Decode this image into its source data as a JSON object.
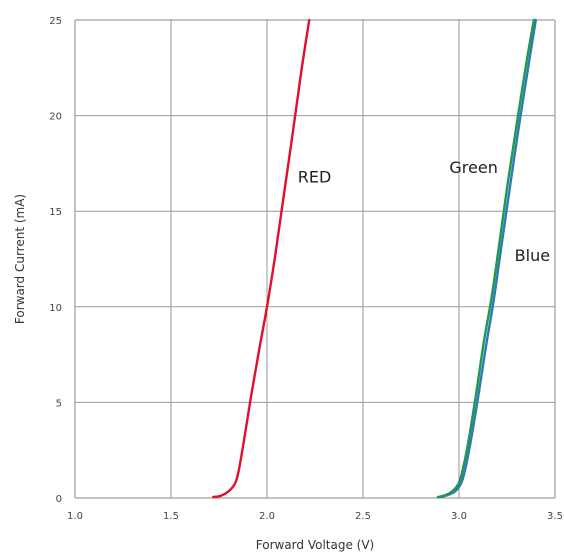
{
  "chart_data": {
    "type": "line",
    "title": "",
    "xlabel": "Forward Voltage (V)",
    "ylabel": "Forward Current (mA)",
    "xlim": [
      1.0,
      3.5
    ],
    "ylim": [
      0,
      25
    ],
    "grid": true,
    "legend": "none",
    "x_ticks": [
      "1.0",
      "1.5",
      "2.0",
      "2.5",
      "3.0",
      "3.5"
    ],
    "y_ticks": [
      "0",
      "5",
      "10",
      "15",
      "20",
      "25"
    ],
    "colors": {
      "RED": "#e0102a",
      "Green": "#1e9a48",
      "Blue": "#2f78c0",
      "grid": "#999999",
      "axis_frame": "#888888"
    },
    "series": [
      {
        "name": "RED",
        "x": [
          1.72,
          1.76,
          1.8,
          1.83,
          1.85,
          1.88,
          1.92,
          1.96,
          2.0,
          2.04,
          2.08,
          2.13,
          2.18,
          2.22
        ],
        "y": [
          0.05,
          0.12,
          0.35,
          0.7,
          1.3,
          3.0,
          5.5,
          7.8,
          10.0,
          12.5,
          15.3,
          18.8,
          22.4,
          25.0
        ]
      },
      {
        "name": "Green",
        "x": [
          2.89,
          2.93,
          2.97,
          3.0,
          3.02,
          3.05,
          3.09,
          3.13,
          3.17,
          3.21,
          3.25,
          3.3,
          3.35,
          3.39
        ],
        "y": [
          0.05,
          0.15,
          0.4,
          0.8,
          1.5,
          3.0,
          5.5,
          8.2,
          10.5,
          13.3,
          16.2,
          19.5,
          22.7,
          25.0
        ]
      },
      {
        "name": "Blue",
        "x": [
          2.9,
          2.94,
          2.98,
          3.01,
          3.03,
          3.06,
          3.1,
          3.14,
          3.18,
          3.22,
          3.26,
          3.31,
          3.36,
          3.4
        ],
        "y": [
          0.05,
          0.15,
          0.35,
          0.75,
          1.4,
          2.9,
          5.3,
          7.9,
          10.3,
          13.1,
          15.9,
          19.3,
          22.5,
          25.0
        ]
      }
    ],
    "annotations": [
      {
        "text": "RED",
        "series": "RED",
        "x": 2.16,
        "y": 16.5
      },
      {
        "text": "Green",
        "series": "Green",
        "x": 2.95,
        "y": 17.0
      },
      {
        "text": "Blue",
        "series": "Blue",
        "x": 3.29,
        "y": 12.4
      }
    ]
  }
}
